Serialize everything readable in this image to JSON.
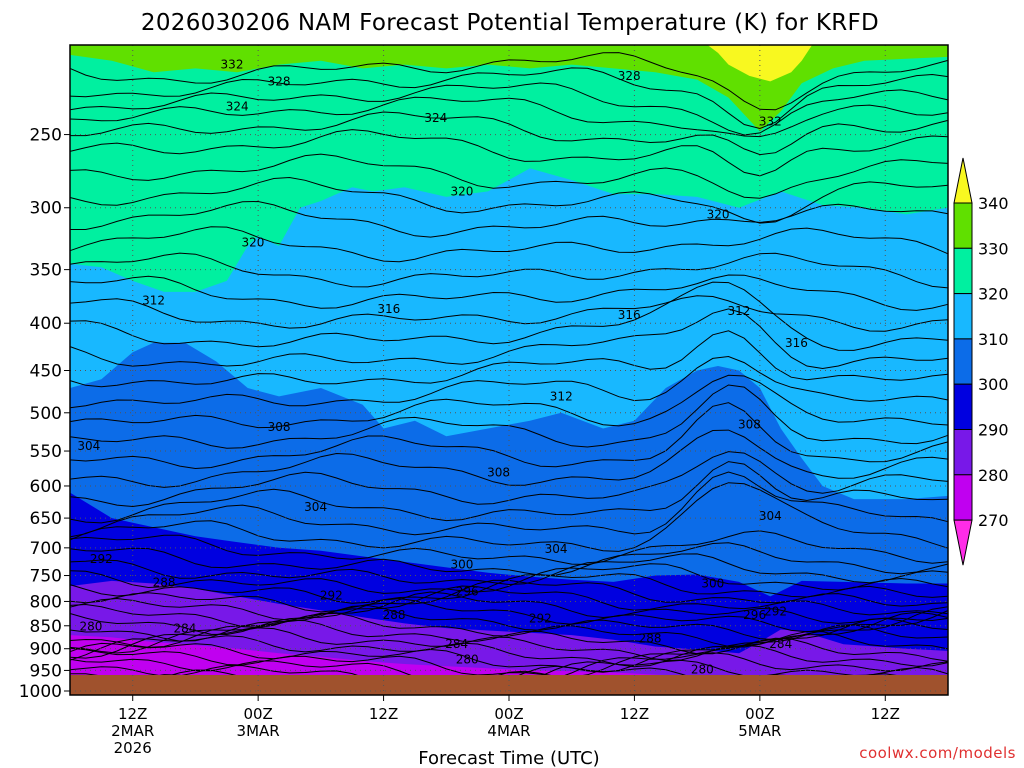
{
  "chart_data": {
    "type": "heatmap",
    "title": "2026030206 NAM Forecast Potential Temperature (K) for KRFD",
    "xlabel": "Forecast Time (UTC)",
    "x_ticks": [
      {
        "hour": 6,
        "lines": [
          "12Z",
          "2MAR",
          "2026"
        ]
      },
      {
        "hour": 18,
        "lines": [
          "00Z",
          "3MAR"
        ]
      },
      {
        "hour": 30,
        "lines": [
          "12Z"
        ]
      },
      {
        "hour": 42,
        "lines": [
          "00Z",
          "4MAR"
        ]
      },
      {
        "hour": 54,
        "lines": [
          "12Z"
        ]
      },
      {
        "hour": 66,
        "lines": [
          "00Z",
          "5MAR"
        ]
      },
      {
        "hour": 78,
        "lines": [
          "12Z"
        ]
      }
    ],
    "xlim": [
      0,
      84
    ],
    "y_ticks": [
      "250",
      "300",
      "350",
      "400",
      "450",
      "500",
      "550",
      "600",
      "650",
      "700",
      "750",
      "800",
      "850",
      "900",
      "950",
      "1000"
    ],
    "y_values": [
      250,
      300,
      350,
      400,
      450,
      500,
      550,
      600,
      650,
      700,
      750,
      800,
      850,
      900,
      950,
      1000
    ],
    "ylim": [
      200,
      1010
    ],
    "yscale": "log",
    "grid": true,
    "credit": "coolwx.com/models",
    "colorbar": {
      "labels": [
        "340",
        "330",
        "320",
        "310",
        "300",
        "290",
        "280",
        "270"
      ],
      "levels": [
        270,
        280,
        290,
        300,
        310,
        320,
        330,
        340
      ],
      "colors": [
        "#ff2ce8",
        "#c000f0",
        "#7818e8",
        "#0000e0",
        "#0c6ce8",
        "#18b8ff",
        "#00f0a0",
        "#60e000",
        "#f8f820"
      ]
    },
    "contour_labels": [
      {
        "text": "332",
        "hour": 15.5,
        "p": 210
      },
      {
        "text": "328",
        "hour": 20,
        "p": 219
      },
      {
        "text": "328",
        "hour": 53.5,
        "p": 216
      },
      {
        "text": "332",
        "hour": 67,
        "p": 242
      },
      {
        "text": "324",
        "hour": 16,
        "p": 233
      },
      {
        "text": "324",
        "hour": 35,
        "p": 240
      },
      {
        "text": "320",
        "hour": 37.5,
        "p": 288
      },
      {
        "text": "320",
        "hour": 62,
        "p": 305
      },
      {
        "text": "320",
        "hour": 17.5,
        "p": 327
      },
      {
        "text": "312",
        "hour": 8,
        "p": 378
      },
      {
        "text": "316",
        "hour": 30.5,
        "p": 386
      },
      {
        "text": "316",
        "hour": 53.5,
        "p": 392
      },
      {
        "text": "312",
        "hour": 64,
        "p": 388
      },
      {
        "text": "316",
        "hour": 69.5,
        "p": 420
      },
      {
        "text": "312",
        "hour": 47,
        "p": 480
      },
      {
        "text": "308",
        "hour": 20,
        "p": 518
      },
      {
        "text": "308",
        "hour": 65,
        "p": 515
      },
      {
        "text": "304",
        "hour": 1.8,
        "p": 543
      },
      {
        "text": "308",
        "hour": 41,
        "p": 580
      },
      {
        "text": "304",
        "hour": 23.5,
        "p": 632
      },
      {
        "text": "304",
        "hour": 67,
        "p": 647
      },
      {
        "text": "304",
        "hour": 46.5,
        "p": 702
      },
      {
        "text": "300",
        "hour": 37.5,
        "p": 730
      },
      {
        "text": "292",
        "hour": 3,
        "p": 720
      },
      {
        "text": "300",
        "hour": 61.5,
        "p": 765
      },
      {
        "text": "288",
        "hour": 9,
        "p": 763
      },
      {
        "text": "296",
        "hour": 38,
        "p": 780
      },
      {
        "text": "292",
        "hour": 25,
        "p": 788
      },
      {
        "text": "288",
        "hour": 31,
        "p": 828
      },
      {
        "text": "292",
        "hour": 45,
        "p": 835
      },
      {
        "text": "296",
        "hour": 65.5,
        "p": 827
      },
      {
        "text": "292",
        "hour": 67.5,
        "p": 820
      },
      {
        "text": "280",
        "hour": 2,
        "p": 852
      },
      {
        "text": "284",
        "hour": 11,
        "p": 856
      },
      {
        "text": "284",
        "hour": 37,
        "p": 890
      },
      {
        "text": "288",
        "hour": 55.5,
        "p": 877
      },
      {
        "text": "284",
        "hour": 68,
        "p": 890
      },
      {
        "text": "280",
        "hour": 38,
        "p": 925
      },
      {
        "text": "280",
        "hour": 60.5,
        "p": 948
      }
    ]
  }
}
